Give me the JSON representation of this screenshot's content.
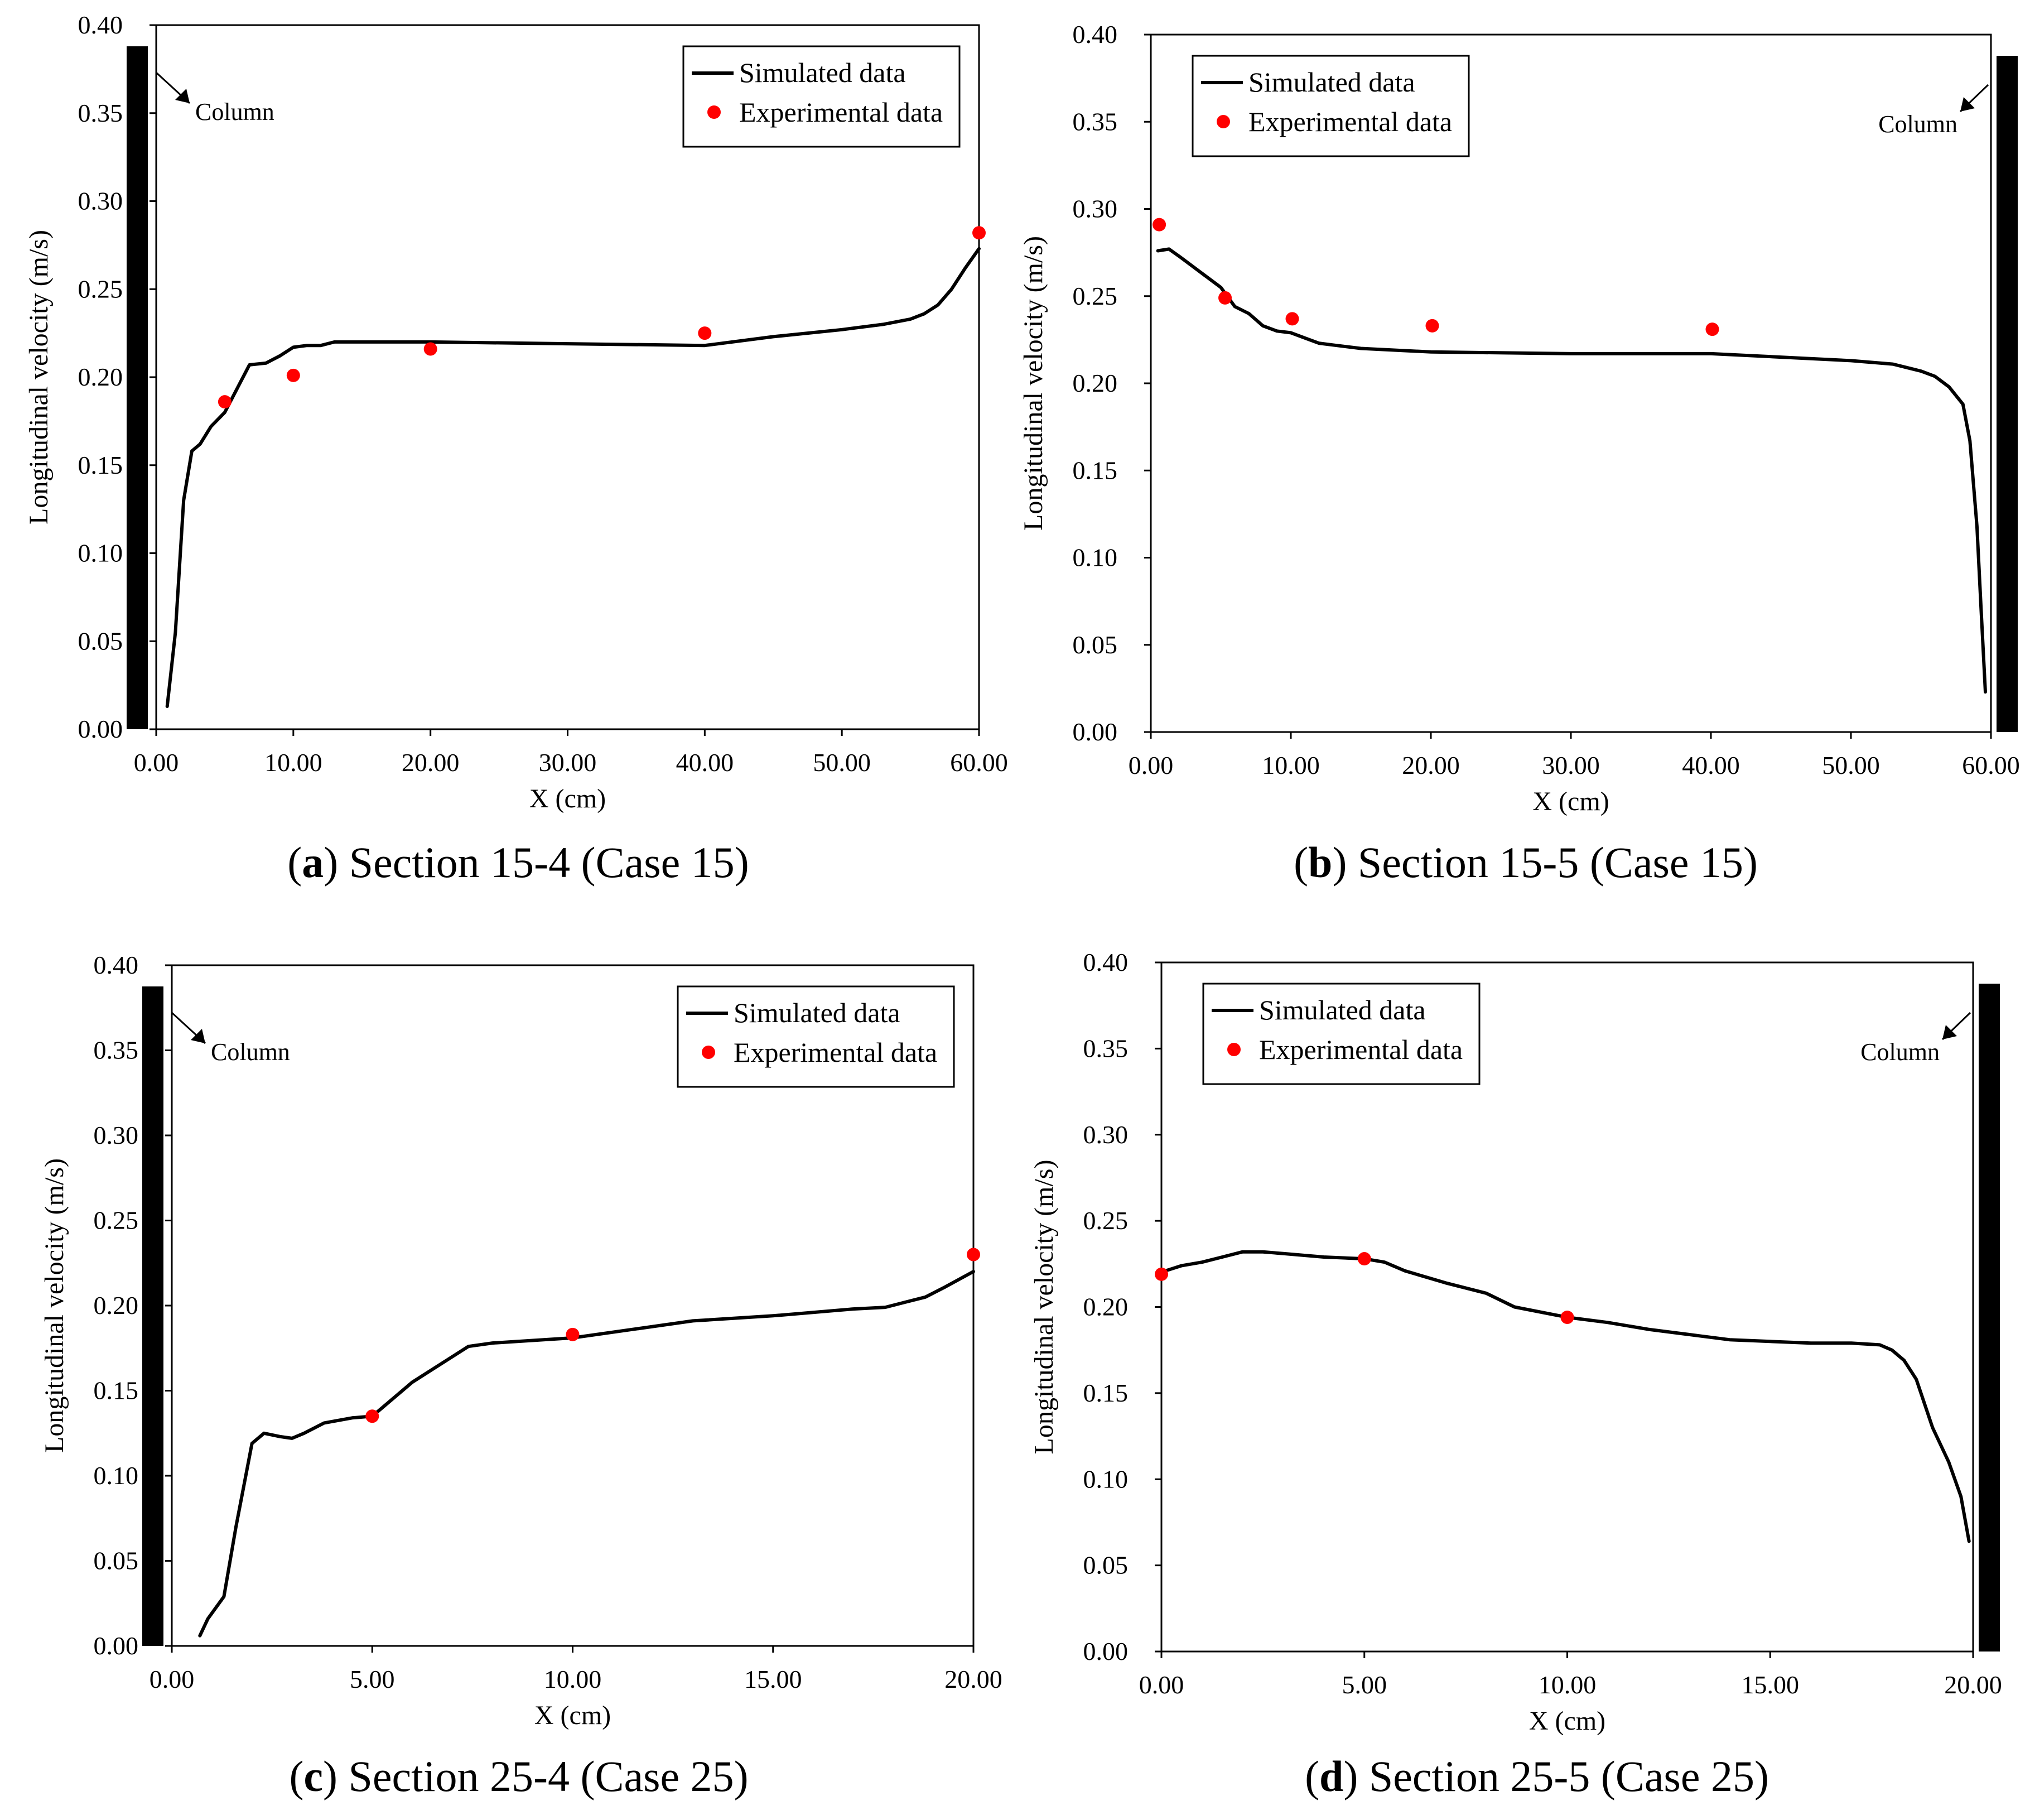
{
  "figure": {
    "legend": {
      "simulated": "Simulated data",
      "experimental": "Experimental data"
    },
    "column_label": "Column",
    "colors": {
      "simulated": "#000000",
      "experimental": "#ff0000",
      "column": "#000000"
    }
  },
  "chart_data": [
    {
      "id": "a",
      "type": "line",
      "caption_letter": "a",
      "caption_text": " Section 15-4 (Case 15)",
      "xlabel": "X (cm)",
      "ylabel": "Longitudinal velocity (m/s)",
      "xlim": [
        0,
        60
      ],
      "ylim": [
        0,
        0.4
      ],
      "xticks": [
        "0.00",
        "10.00",
        "20.00",
        "30.00",
        "40.00",
        "50.00",
        "60.00"
      ],
      "yticks": [
        "0.00",
        "0.05",
        "0.10",
        "0.15",
        "0.20",
        "0.25",
        "0.30",
        "0.35",
        "0.40"
      ],
      "legend_position": "top-right",
      "column_side": "left",
      "series": [
        {
          "name": "Simulated data",
          "x": [
            0.8,
            1.4,
            2.0,
            2.6,
            3.2,
            4.0,
            5.0,
            6.0,
            6.8,
            8.0,
            9.0,
            10.0,
            11.0,
            12.0,
            13.0,
            15.0,
            20.0,
            30.0,
            40.0,
            45.0,
            50.0,
            53.0,
            55.0,
            56.0,
            57.0,
            58.0,
            59.0,
            60.0
          ],
          "y": [
            0.013,
            0.055,
            0.13,
            0.158,
            0.162,
            0.172,
            0.18,
            0.195,
            0.207,
            0.208,
            0.212,
            0.217,
            0.218,
            0.218,
            0.22,
            0.22,
            0.22,
            0.219,
            0.218,
            0.223,
            0.227,
            0.23,
            0.233,
            0.236,
            0.241,
            0.25,
            0.262,
            0.273
          ]
        },
        {
          "name": "Experimental data",
          "x": [
            5,
            10,
            20,
            40,
            60
          ],
          "y": [
            0.186,
            0.201,
            0.216,
            0.225,
            0.282
          ]
        }
      ]
    },
    {
      "id": "b",
      "type": "line",
      "caption_letter": "b",
      "caption_text": " Section 15-5 (Case 15)",
      "xlabel": "X (cm)",
      "ylabel": "Longitudinal velocity (m/s)",
      "xlim": [
        0,
        60
      ],
      "ylim": [
        0,
        0.4
      ],
      "xticks": [
        "0.00",
        "10.00",
        "20.00",
        "30.00",
        "40.00",
        "50.00",
        "60.00"
      ],
      "yticks": [
        "0.00",
        "0.05",
        "0.10",
        "0.15",
        "0.20",
        "0.25",
        "0.30",
        "0.35",
        "0.40"
      ],
      "legend_position": "top-left",
      "column_side": "right",
      "series": [
        {
          "name": "Simulated data",
          "x": [
            0.5,
            1.3,
            2.0,
            3.0,
            4.0,
            5.0,
            6.0,
            7.0,
            8.0,
            9.0,
            10.0,
            11.0,
            12.0,
            13.0,
            15.0,
            20.0,
            30.0,
            40.0,
            45.0,
            50.0,
            53.0,
            55.0,
            56.0,
            57.0,
            58.0,
            58.5,
            59.0,
            59.3,
            59.6
          ],
          "y": [
            0.276,
            0.277,
            0.273,
            0.267,
            0.261,
            0.255,
            0.244,
            0.24,
            0.233,
            0.23,
            0.229,
            0.226,
            0.223,
            0.222,
            0.22,
            0.218,
            0.217,
            0.217,
            0.215,
            0.213,
            0.211,
            0.207,
            0.204,
            0.198,
            0.188,
            0.167,
            0.118,
            0.07,
            0.023
          ]
        },
        {
          "name": "Experimental data",
          "x": [
            0.6,
            5.3,
            10.1,
            20.1,
            40.1
          ],
          "y": [
            0.291,
            0.249,
            0.237,
            0.233,
            0.231
          ]
        }
      ]
    },
    {
      "id": "c",
      "type": "line",
      "caption_letter": "c",
      "caption_text": " Section 25-4 (Case 25)",
      "xlabel": "X (cm)",
      "ylabel": "Longitudinal velocity (m/s)",
      "xlim": [
        0,
        20
      ],
      "ylim": [
        0,
        0.4
      ],
      "xticks": [
        "0.00",
        "5.00",
        "10.00",
        "15.00",
        "20.00"
      ],
      "yticks": [
        "0.00",
        "0.05",
        "0.10",
        "0.15",
        "0.20",
        "0.25",
        "0.30",
        "0.35",
        "0.40"
      ],
      "legend_position": "top-right",
      "column_side": "left",
      "series": [
        {
          "name": "Simulated data",
          "x": [
            0.7,
            0.9,
            1.3,
            1.6,
            2.0,
            2.3,
            2.7,
            3.0,
            3.3,
            3.8,
            4.5,
            5.0,
            6.0,
            7.0,
            7.4,
            8.0,
            10.0,
            13.0,
            15.0,
            17.0,
            17.8,
            18.3,
            18.8,
            19.3,
            20.0
          ],
          "y": [
            0.006,
            0.016,
            0.029,
            0.07,
            0.119,
            0.125,
            0.123,
            0.122,
            0.125,
            0.131,
            0.134,
            0.135,
            0.155,
            0.17,
            0.176,
            0.178,
            0.181,
            0.191,
            0.194,
            0.198,
            0.199,
            0.202,
            0.205,
            0.211,
            0.22
          ]
        },
        {
          "name": "Experimental data",
          "x": [
            5,
            10,
            20
          ],
          "y": [
            0.135,
            0.183,
            0.23
          ]
        }
      ]
    },
    {
      "id": "d",
      "type": "line",
      "caption_letter": "d",
      "caption_text": " Section 25-5 (Case 25)",
      "xlabel": "X (cm)",
      "ylabel": "Longitudinal velocity (m/s)",
      "xlim": [
        0,
        20
      ],
      "ylim": [
        0,
        0.4
      ],
      "xticks": [
        "0.00",
        "5.00",
        "10.00",
        "15.00",
        "20.00"
      ],
      "yticks": [
        "0.00",
        "0.05",
        "0.10",
        "0.15",
        "0.20",
        "0.25",
        "0.30",
        "0.35",
        "0.40"
      ],
      "legend_position": "top-left",
      "column_side": "right",
      "series": [
        {
          "name": "Simulated data",
          "x": [
            0.1,
            0.5,
            1.0,
            1.5,
            2.0,
            2.5,
            3.0,
            4.0,
            5.0,
            5.5,
            6.0,
            7.0,
            8.0,
            8.7,
            10.0,
            11.0,
            12.0,
            13.0,
            14.0,
            15.0,
            16.0,
            17.0,
            17.7,
            18.0,
            18.3,
            18.6,
            19.0,
            19.4,
            19.7,
            19.9
          ],
          "y": [
            0.221,
            0.224,
            0.226,
            0.229,
            0.232,
            0.232,
            0.231,
            0.229,
            0.228,
            0.226,
            0.221,
            0.214,
            0.208,
            0.2,
            0.194,
            0.191,
            0.187,
            0.184,
            0.181,
            0.18,
            0.179,
            0.179,
            0.178,
            0.175,
            0.169,
            0.158,
            0.13,
            0.11,
            0.09,
            0.064
          ]
        },
        {
          "name": "Experimental data",
          "x": [
            0,
            5,
            10
          ],
          "y": [
            0.219,
            0.228,
            0.194
          ]
        }
      ]
    }
  ]
}
